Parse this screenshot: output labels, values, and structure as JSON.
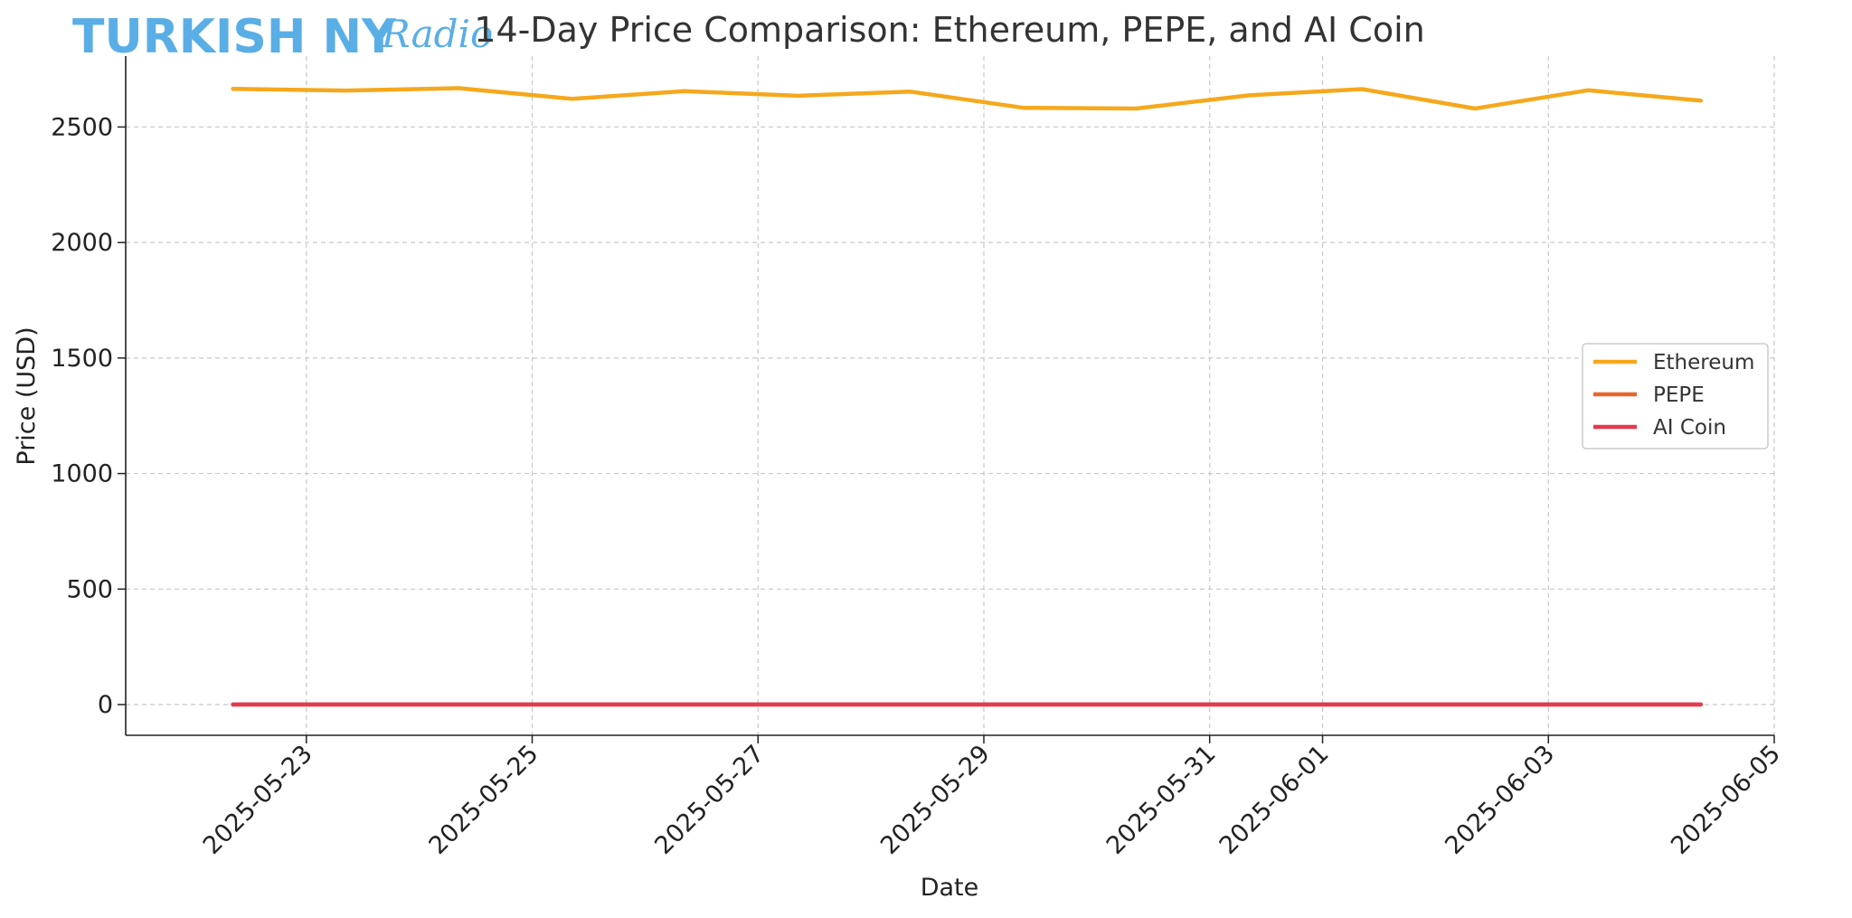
{
  "logo": {
    "main_text": "TURKISH NY",
    "script_text": "Radio",
    "color": "#5aaee6"
  },
  "chart_data": {
    "type": "line",
    "title": "14-Day Price Comparison: Ethereum, PEPE, and AI Coin",
    "xlabel": "Date",
    "ylabel": "Price (USD)",
    "grid": true,
    "legend_position": "center-right",
    "x_tick_labels": [
      "2025-05-23",
      "2025-05-25",
      "2025-05-27",
      "2025-05-29",
      "2025-05-31",
      "2025-06-01",
      "2025-06-03",
      "2025-06-05"
    ],
    "x_tick_days": [
      1,
      3,
      5,
      7,
      9,
      10,
      12,
      14
    ],
    "x_range_days": [
      -0.6,
      14.0
    ],
    "y_ticks": [
      0,
      500,
      1000,
      1500,
      2000,
      2500
    ],
    "ylim": [
      -133,
      2807
    ],
    "x_days": [
      0.35,
      1.35,
      2.35,
      3.35,
      4.35,
      5.35,
      6.35,
      7.35,
      8.35,
      9.35,
      10.35,
      11.35,
      12.35,
      13.35
    ],
    "series": [
      {
        "name": "Ethereum",
        "color": "#f5a81c",
        "values": [
          2665,
          2658,
          2668,
          2622,
          2655,
          2635,
          2653,
          2583,
          2580,
          2637,
          2664,
          2580,
          2659,
          2614
        ]
      },
      {
        "name": "PEPE",
        "color": "#e8672a",
        "values": [
          1.3e-05,
          1.3e-05,
          1.3e-05,
          1.3e-05,
          1.3e-05,
          1.3e-05,
          1.3e-05,
          1.3e-05,
          1.3e-05,
          1.3e-05,
          1.3e-05,
          1.3e-05,
          1.3e-05,
          1.3e-05
        ]
      },
      {
        "name": "AI Coin",
        "color": "#e5394f",
        "values": [
          0.5,
          0.5,
          0.5,
          0.5,
          0.5,
          0.5,
          0.5,
          0.5,
          0.5,
          0.5,
          0.5,
          0.5,
          0.5,
          0.5
        ]
      }
    ]
  }
}
